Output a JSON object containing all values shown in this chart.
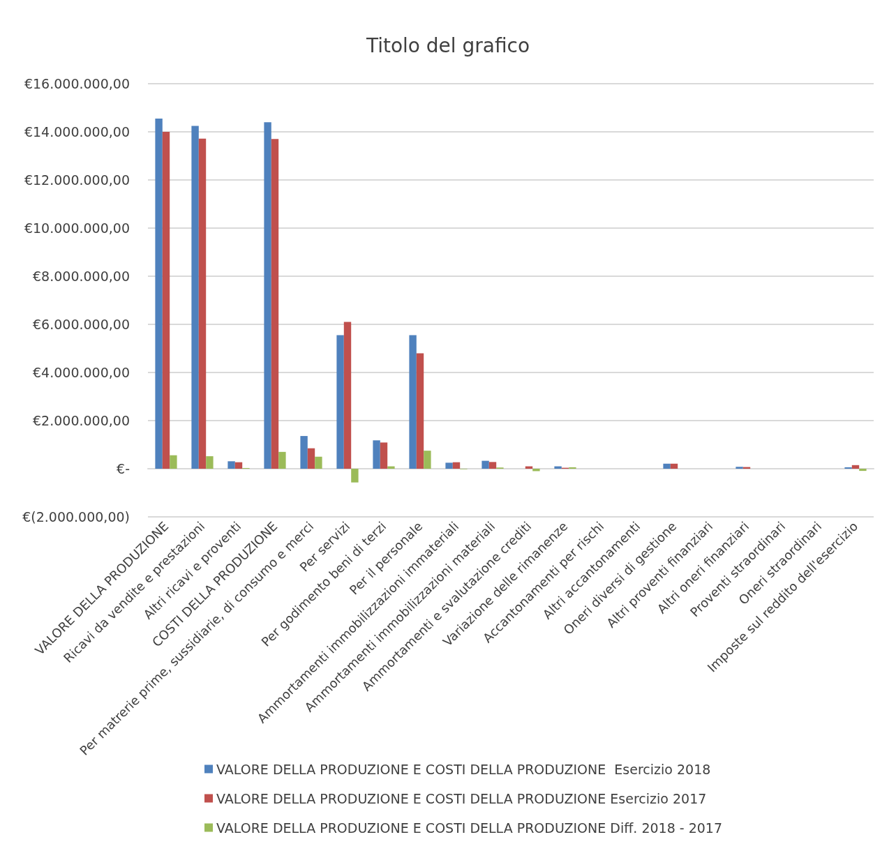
{
  "chart_data": {
    "type": "bar",
    "title": "Titolo del grafico",
    "categories": [
      "VALORE DELLA PRODUZIONE",
      "Ricavi da vendite e prestazioni",
      "Altri ricavi e proventi",
      "COSTI DELLA PRODUZIONE",
      "Per matrerie prime, sussidiarie, di consumo e merci",
      "Per servizi",
      "Per godimento beni di terzi",
      "Per il personale",
      "Ammortamenti immobilizzazioni immateriali",
      "Ammortamenti immobilizzazioni materiali",
      "Ammortamenti e svalutazione crediti",
      "Variazione delle rimanenze",
      "Accantonamenti per rischi",
      "Altri accantonamenti",
      "Oneri diversi di gestione",
      "Altri proventi finanziari",
      "Altri oneri finanziari",
      "Proventi straordinari",
      "Oneri straordinari",
      "Imposte sul reddito dell'esercizio"
    ],
    "series": [
      {
        "name": "VALORE DELLA PRODUZIONE E COSTI DELLA PRODUZIONE  Esercizio 2018",
        "color": "#4f81bd",
        "values": [
          14550000,
          14250000,
          310000,
          14400000,
          1360000,
          5550000,
          1180000,
          5550000,
          250000,
          330000,
          0,
          100000,
          0,
          0,
          210000,
          0,
          80000,
          0,
          0,
          60000
        ]
      },
      {
        "name": "VALORE DELLA PRODUZIONE E COSTI DELLA PRODUZIONE Esercizio 2017",
        "color": "#c0504d",
        "values": [
          14000000,
          13720000,
          270000,
          13700000,
          850000,
          6100000,
          1090000,
          4800000,
          270000,
          280000,
          100000,
          40000,
          0,
          0,
          210000,
          0,
          70000,
          0,
          0,
          150000
        ]
      },
      {
        "name": "VALORE DELLA PRODUZIONE E COSTI DELLA PRODUZIONE Diff. 2018 - 2017",
        "color": "#9bbb59",
        "values": [
          560000,
          520000,
          30000,
          700000,
          500000,
          -570000,
          100000,
          750000,
          -20000,
          50000,
          -100000,
          60000,
          0,
          0,
          0,
          0,
          null,
          0,
          0,
          -90000
        ]
      }
    ],
    "ylim": [
      -2000000,
      16000000
    ],
    "yticks": [
      {
        "value": -2000000,
        "label": "€(2.000.000,00)"
      },
      {
        "value": 0,
        "label": "€-"
      },
      {
        "value": 2000000,
        "label": "€2.000.000,00"
      },
      {
        "value": 4000000,
        "label": "€4.000.000,00"
      },
      {
        "value": 6000000,
        "label": "€6.000.000,00"
      },
      {
        "value": 8000000,
        "label": "€8.000.000,00"
      },
      {
        "value": 10000000,
        "label": "€10.000.000,00"
      },
      {
        "value": 12000000,
        "label": "€12.000.000,00"
      },
      {
        "value": 14000000,
        "label": "€14.000.000,00"
      },
      {
        "value": 16000000,
        "label": "€16.000.000,00"
      }
    ],
    "grid": "y",
    "legend": "bottom"
  }
}
